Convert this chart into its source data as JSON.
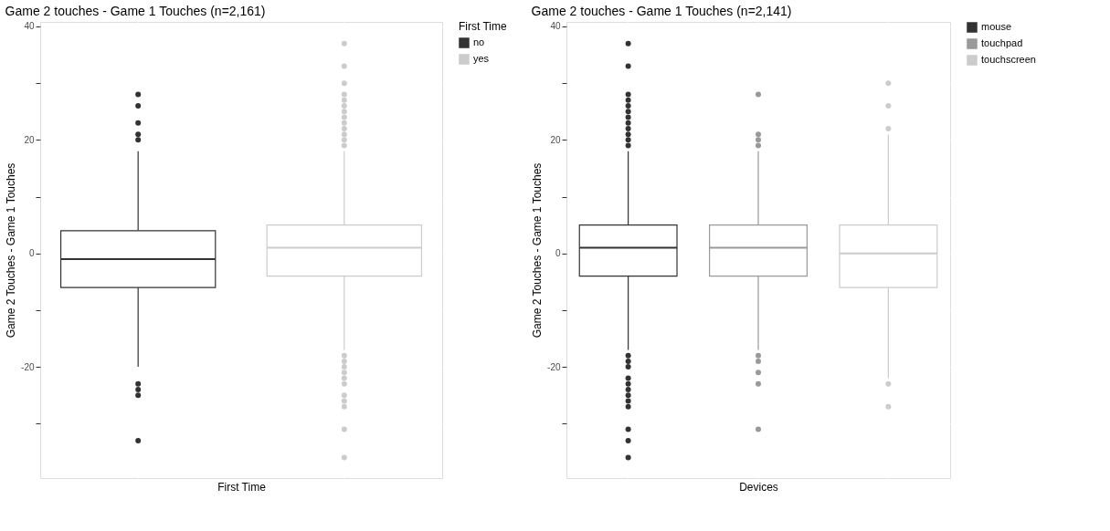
{
  "chart_data": [
    {
      "type": "box",
      "title": "Game 2 touches - Game 1 Touches (n=2,161)",
      "xlabel": "First Time",
      "ylabel": "Game 2 Touches - Game 1 Touches",
      "legend_title": "First Time",
      "categories": [
        null,
        null
      ],
      "series": [
        {
          "name": "no",
          "color": "#333333",
          "boxes": [
            {
              "low": -20,
              "q1": -6,
              "median": -1,
              "q3": 4,
              "high": 18,
              "outliers": [
                28,
                26,
                23,
                21,
                20,
                -23,
                -24,
                -25,
                -33
              ]
            },
            null
          ]
        },
        {
          "name": "yes",
          "color": "#cccccc",
          "boxes": [
            null,
            {
              "low": -17,
              "q1": -4,
              "median": 1,
              "q3": 5,
              "high": 18,
              "outliers": [
                37,
                33,
                30,
                28,
                27,
                26,
                25,
                24,
                23,
                22,
                21,
                20,
                19,
                -18,
                -19,
                -20,
                -21,
                -22,
                -23,
                -25,
                -26,
                -27,
                -31,
                -36
              ]
            }
          ]
        }
      ],
      "ylim": [
        -39.6,
        40.8
      ],
      "yticks": [
        {
          "value": -30,
          "label": null
        },
        -20,
        {
          "value": -10,
          "label": null
        },
        0,
        {
          "value": 10,
          "label": null
        },
        20,
        {
          "value": 30,
          "label": null
        },
        40
      ],
      "grid": true,
      "legend": "right",
      "tick_labels": "y"
    },
    {
      "type": "box",
      "title": "Game 2 touches - Game 1 Touches (n=2,141)",
      "xlabel": "Devices",
      "ylabel": "Game 2 Touches - Game 1 Touches",
      "categories": [
        null,
        null,
        null
      ],
      "series": [
        {
          "name": "mouse",
          "color": "#333333",
          "boxes": [
            {
              "low": -17,
              "q1": -4,
              "median": 1,
              "q3": 5,
              "high": 18,
              "outliers": [
                37,
                33,
                28,
                27,
                26,
                25,
                24,
                23,
                22,
                21,
                20,
                19,
                -18,
                -19,
                -20,
                -22,
                -23,
                -24,
                -25,
                -26,
                -27,
                -31,
                -33,
                -36
              ]
            },
            null,
            null
          ]
        },
        {
          "name": "touchpad",
          "color": "#999999",
          "boxes": [
            null,
            {
              "low": -17,
              "q1": -4,
              "median": 1,
              "q3": 5,
              "high": 18,
              "outliers": [
                28,
                21,
                20,
                19,
                -18,
                -19,
                -21,
                -23,
                -31
              ]
            },
            null
          ]
        },
        {
          "name": "touchscreen",
          "color": "#cccccc",
          "boxes": [
            null,
            null,
            {
              "low": -22,
              "q1": -6,
              "median": 0,
              "q3": 5,
              "high": 21,
              "outliers": [
                30,
                26,
                22,
                -23,
                -27
              ]
            }
          ]
        }
      ],
      "ylim": [
        -39.6,
        40.8
      ],
      "yticks": [
        {
          "value": -30,
          "label": null
        },
        -20,
        {
          "value": -10,
          "label": null
        },
        0,
        {
          "value": 10,
          "label": null
        },
        20,
        {
          "value": 30,
          "label": null
        },
        40
      ],
      "grid": true,
      "legend": "right",
      "tick_labels": "y"
    }
  ]
}
